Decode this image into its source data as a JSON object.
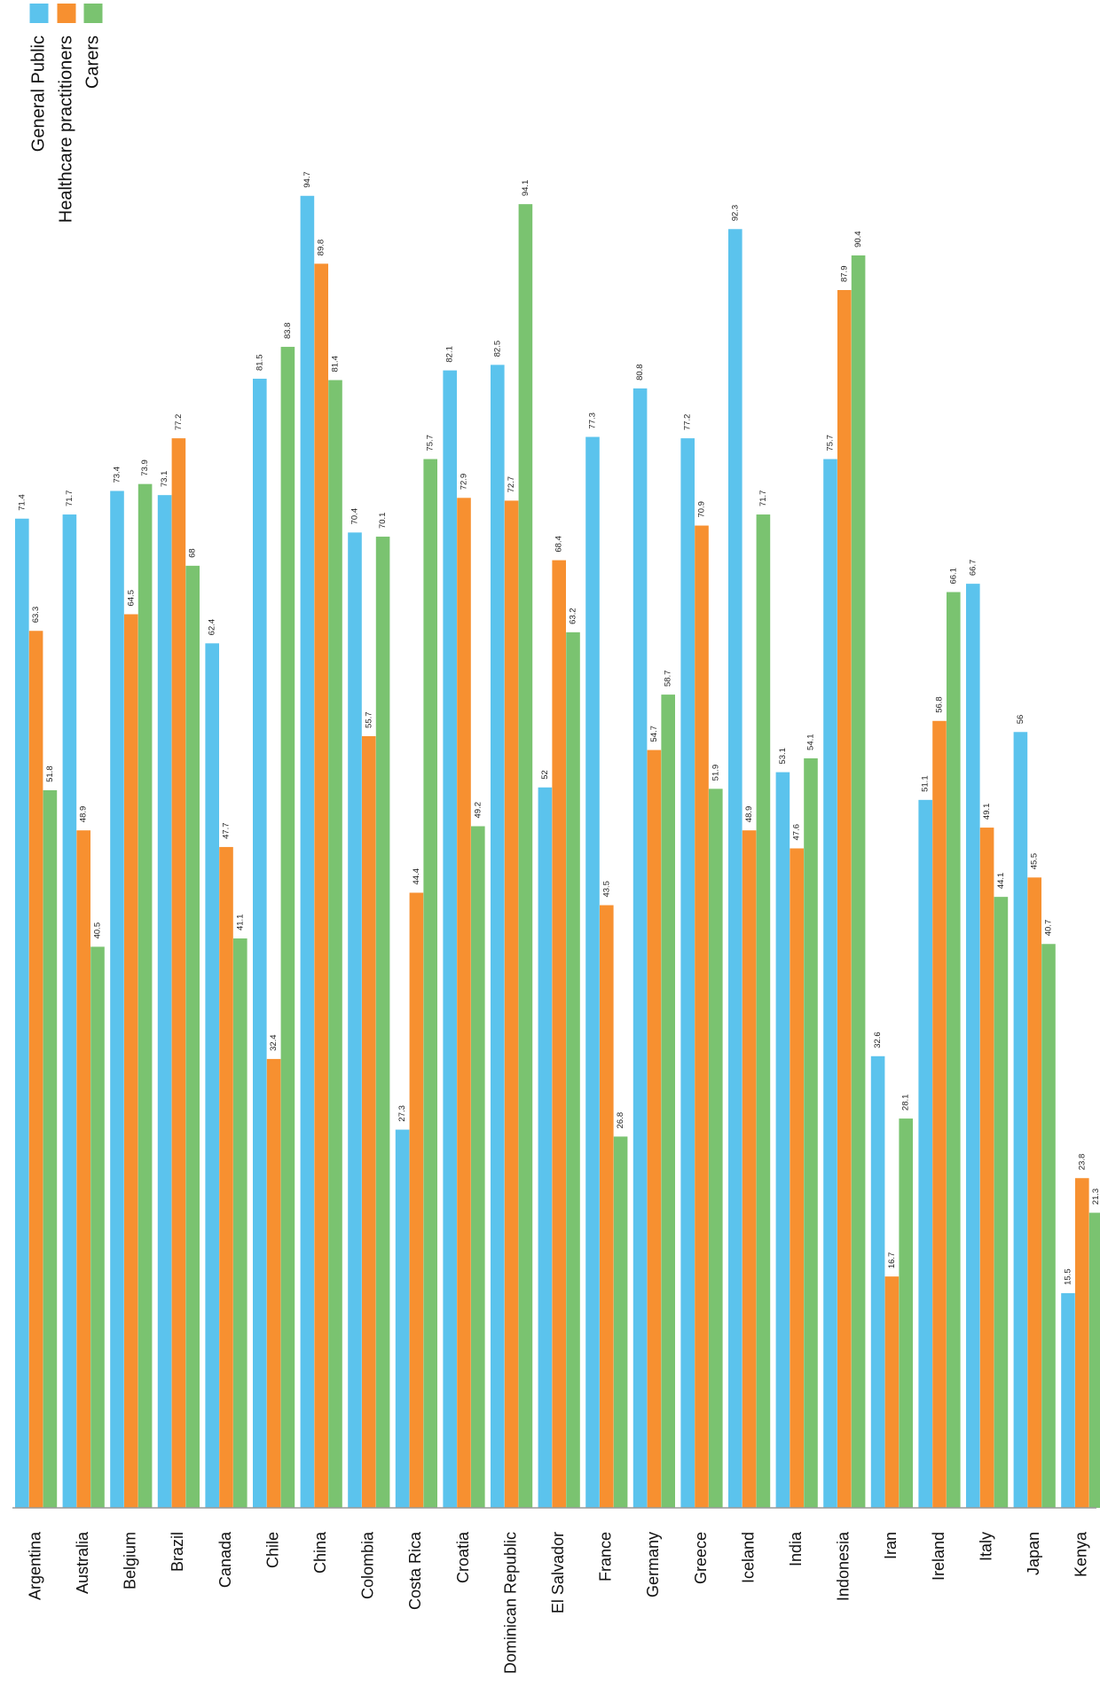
{
  "chart_data": {
    "type": "bar",
    "orientation": "vertical, rendered rotated 90 degrees (text reads bottom-to-top)",
    "categories": [
      "Argentina",
      "Australia",
      "Belgium",
      "Brazil",
      "Canada",
      "Chile",
      "China",
      "Colombia",
      "Costa Rica",
      "Croatia",
      "Dominican Republic",
      "El Salvador",
      "France",
      "Germany",
      "Greece",
      "Iceland",
      "India",
      "Indonesia",
      "Iran",
      "Ireland",
      "Italy",
      "Japan",
      "Kenya"
    ],
    "series": [
      {
        "name": "General Public",
        "color": "#5bc3ed",
        "values": [
          71.4,
          71.7,
          73.4,
          73.1,
          62.4,
          81.5,
          94.7,
          70.4,
          27.3,
          82.1,
          82.5,
          52,
          77.3,
          80.8,
          77.2,
          92.3,
          53.1,
          75.7,
          32.6,
          51.1,
          66.7,
          56,
          15.5
        ]
      },
      {
        "name": "Healthcare practitioners",
        "color": "#f79030",
        "values": [
          63.3,
          48.9,
          64.5,
          77.2,
          47.7,
          32.4,
          89.8,
          55.7,
          44.4,
          72.9,
          72.7,
          68.4,
          43.5,
          54.7,
          70.9,
          48.9,
          47.6,
          87.9,
          16.7,
          56.8,
          49.1,
          45.5,
          23.8
        ]
      },
      {
        "name": "Carers",
        "color": "#7ac370",
        "values": [
          51.8,
          40.5,
          73.9,
          68,
          41.1,
          83.8,
          81.4,
          70.1,
          75.7,
          49.2,
          94.1,
          63.2,
          26.8,
          58.7,
          51.9,
          71.7,
          54.1,
          90.4,
          28.1,
          66.1,
          44.1,
          40.7,
          21.3
        ]
      }
    ],
    "data_labels": true,
    "legend_placement": "top-left",
    "grid": false,
    "ylim": [
      0,
      100
    ],
    "title": "",
    "xlabel": "",
    "ylabel": ""
  }
}
